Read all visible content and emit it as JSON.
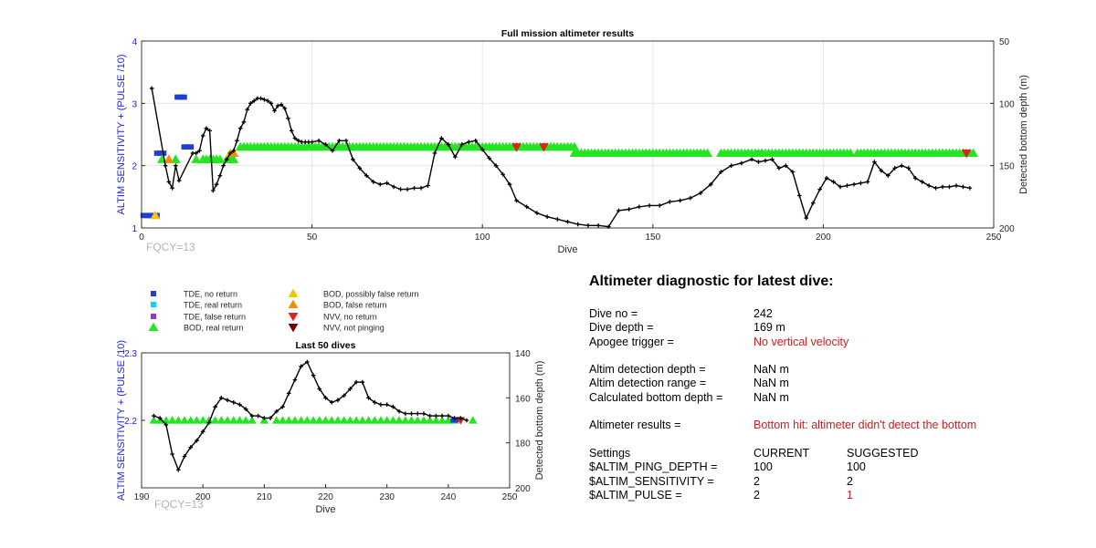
{
  "colors": {
    "tde_no_return": "#1f3fd4",
    "tde_real_return": "#00d8f5",
    "tde_false_return": "#8a3cc9",
    "bod_real_return": "#22e61f",
    "bod_possibly_false": "#f5c400",
    "bod_false_return": "#f28c00",
    "nvv_no_return": "#e02020",
    "nvv_not_pinging": "#7a0000",
    "depth_line": "#000000",
    "left_axis": "#1a1aff",
    "highlight": "#d7191c"
  },
  "legend": {
    "tde_no_return": "TDE, no return",
    "tde_real_return": "TDE, real return",
    "tde_false_return": "TDE, false return",
    "bod_real_return": "BOD, real return",
    "bod_possibly_false": "BOD, possibly false return",
    "bod_false_return": "BOD, false return",
    "nvv_no_return": "NVV, no return",
    "nvv_not_pinging": "NVV, not pinging"
  },
  "chart_data": [
    {
      "type": "scatter",
      "title": "Full mission altimeter results",
      "xlabel": "Dive",
      "ylabel_left": "ALTIM SENSITIVITY + (PULSE /10)",
      "ylabel_right": "Detected bottom depth (m)",
      "annotation": "FQCY=13",
      "xlim": [
        0,
        250
      ],
      "ylim_left": [
        1,
        4
      ],
      "ylim_right": [
        50,
        200
      ],
      "right_axis_reversed": true,
      "xticks": [
        0,
        50,
        100,
        150,
        200,
        250
      ],
      "yticks_left": [
        1,
        2,
        3,
        4
      ],
      "yticks_right": [
        50,
        100,
        150,
        200
      ],
      "grid": true,
      "series": [
        {
          "name": "TDE, no return",
          "marker": "square",
          "points": [
            [
              1,
              1.2
            ],
            [
              2,
              1.2
            ],
            [
              3,
              1.2
            ],
            [
              4,
              1.2
            ],
            [
              5,
              2.2
            ],
            [
              6,
              2.2
            ],
            [
              11,
              3.1
            ],
            [
              12,
              3.1
            ],
            [
              13,
              2.3
            ],
            [
              14,
              2.3
            ],
            [
              181,
              2.2
            ]
          ]
        },
        {
          "name": "BOD, real return",
          "marker": "triangle-up",
          "ranges": [
            [
              6,
              6,
              2.1
            ],
            [
              10,
              10,
              2.1
            ],
            [
              16,
              16,
              2.1
            ],
            [
              18,
              23,
              2.1
            ],
            [
              25,
              27,
              2.1
            ],
            [
              29,
              127,
              2.3
            ],
            [
              127,
              166,
              2.2
            ],
            [
              170,
              182,
              2.2
            ],
            [
              182,
              208,
              2.2
            ],
            [
              210,
              213,
              2.2
            ],
            [
              213,
              243,
              2.2
            ],
            [
              244,
              244,
              2.2
            ]
          ]
        },
        {
          "name": "BOD, possibly false return",
          "marker": "triangle-up",
          "points": [
            [
              4,
              1.2
            ],
            [
              8,
              2.1
            ],
            [
              26,
              2.2
            ],
            [
              27,
              2.2
            ]
          ]
        },
        {
          "name": "BOD, false return",
          "marker": "triangle-up",
          "points": [
            [
              8,
              2.1
            ],
            [
              27,
              2.2
            ]
          ]
        },
        {
          "name": "NVV, no return",
          "marker": "triangle-down",
          "points": [
            [
              110,
              2.3
            ],
            [
              118,
              2.3
            ],
            [
              242,
              2.2
            ]
          ]
        },
        {
          "name": "Detected bottom depth",
          "marker": "plus-line",
          "axis": "right",
          "x": [
            3,
            7,
            8,
            9,
            10,
            11,
            15,
            16,
            17,
            18,
            19,
            20,
            21,
            22,
            23,
            24,
            25,
            26,
            27,
            28,
            29,
            30,
            31,
            32,
            33,
            34,
            35,
            36,
            37,
            38,
            39,
            40,
            41,
            42,
            43,
            44,
            45,
            46,
            47,
            48,
            49,
            50,
            52,
            54,
            56,
            58,
            60,
            62,
            64,
            66,
            68,
            70,
            72,
            74,
            76,
            78,
            80,
            82,
            84,
            86,
            88,
            90,
            92,
            94,
            96,
            98,
            100,
            102,
            104,
            106,
            108,
            110,
            113,
            116,
            119,
            122,
            125,
            128,
            131,
            134,
            137,
            140,
            143,
            146,
            149,
            152,
            155,
            158,
            161,
            164,
            167,
            170,
            173,
            176,
            179,
            181,
            183,
            185,
            187,
            189,
            191,
            193,
            195,
            197,
            199,
            201,
            203,
            205,
            207,
            209,
            211,
            213,
            215,
            217,
            219,
            221,
            223,
            225,
            227,
            229,
            231,
            233,
            235,
            237,
            239,
            241,
            243
          ],
          "y": [
            88,
            150,
            163,
            168,
            150,
            162,
            140,
            140,
            138,
            126,
            120,
            122,
            170,
            165,
            158,
            150,
            145,
            140,
            138,
            130,
            120,
            115,
            105,
            100,
            98,
            96,
            96,
            97,
            98,
            100,
            106,
            102,
            101,
            104,
            112,
            122,
            128,
            130,
            131,
            131,
            131,
            131,
            130,
            133,
            138,
            130,
            130,
            145,
            152,
            158,
            163,
            165,
            164,
            167,
            169,
            169,
            168,
            168,
            166,
            140,
            128,
            133,
            143,
            133,
            131,
            130,
            137,
            144,
            150,
            157,
            165,
            178,
            183,
            188,
            191,
            193,
            195,
            197,
            198,
            198,
            199,
            186,
            185,
            183,
            182,
            182,
            179,
            178,
            176,
            172,
            165,
            155,
            150,
            148,
            145,
            147,
            146,
            145,
            152,
            150,
            155,
            174,
            192,
            180,
            169,
            160,
            163,
            167,
            166,
            165,
            164,
            163,
            147,
            154,
            158,
            152,
            150,
            152,
            160,
            163,
            166,
            168,
            167,
            167,
            166,
            167,
            168
          ]
        }
      ]
    },
    {
      "type": "scatter",
      "title": "Last 50 dives",
      "xlabel": "Dive",
      "ylabel_left": "ALTIM SENSITIVITY + (PULSE /10)",
      "ylabel_right": "Detected bottom depth (m)",
      "annotation": "FQCY=13",
      "xlim": [
        190,
        250
      ],
      "ylim_left": [
        2.1,
        2.3
      ],
      "ylim_right": [
        140,
        200
      ],
      "right_axis_reversed": true,
      "xticks": [
        190,
        200,
        210,
        220,
        230,
        240,
        250
      ],
      "yticks_left": [
        2.2,
        2.3
      ],
      "yticks_right": [
        140,
        160,
        180,
        200
      ],
      "grid": false,
      "series": [
        {
          "name": "BOD, real return",
          "marker": "triangle-up",
          "ranges": [
            [
              192,
              208,
              2.2
            ],
            [
              210,
              210,
              2.2
            ],
            [
              212,
              241,
              2.2
            ],
            [
              244,
              244,
              2.2
            ]
          ]
        },
        {
          "name": "TDE, no return",
          "marker": "square",
          "points": [
            [
              241,
              2.2
            ]
          ]
        },
        {
          "name": "NVV, no return",
          "marker": "triangle-down",
          "points": [
            [
              242,
              2.2
            ]
          ]
        },
        {
          "name": "Detected bottom depth",
          "marker": "plus-line",
          "axis": "right",
          "x": [
            192,
            193,
            194,
            195,
            196,
            197,
            198,
            199,
            200,
            201,
            202,
            203,
            204,
            205,
            206,
            207,
            208,
            209,
            210,
            211,
            212,
            213,
            214,
            215,
            216,
            217,
            218,
            219,
            220,
            221,
            222,
            223,
            224,
            225,
            226,
            227,
            228,
            229,
            230,
            231,
            232,
            233,
            234,
            235,
            236,
            237,
            238,
            239,
            240,
            241,
            242,
            243
          ],
          "y": [
            168,
            169,
            172,
            185,
            192,
            186,
            182,
            179,
            175,
            171,
            164,
            160,
            161,
            162,
            163,
            165,
            168,
            168,
            169,
            169,
            166,
            164,
            158,
            152,
            146,
            144,
            150,
            156,
            160,
            162,
            161,
            159,
            156,
            153,
            153,
            160,
            162,
            163,
            163,
            164,
            166,
            167,
            167,
            167,
            167,
            168,
            168,
            168,
            168,
            169,
            169,
            170
          ]
        }
      ]
    }
  ],
  "diagnostic": {
    "title": "Altimeter diagnostic for latest dive:",
    "rows": [
      {
        "label": "Dive no =",
        "value": "242"
      },
      {
        "label": "Dive depth =",
        "value": "169 m"
      },
      {
        "label": "Apogee trigger =",
        "value": "No vertical velocity"
      },
      {
        "label": "Altim detection depth =",
        "value": "NaN m"
      },
      {
        "label": "Altim detection range =",
        "value": "NaN m"
      },
      {
        "label": "Calculated bottom depth =",
        "value": "NaN m"
      },
      {
        "label": "Altimeter results =",
        "value": "Bottom hit: altimeter didn't detect the bottom"
      }
    ],
    "settings": {
      "header": [
        "Settings",
        "CURRENT",
        "SUGGESTED"
      ],
      "rows": [
        {
          "name": "$ALTIM_PING_DEPTH =",
          "current": "100",
          "suggested": "100"
        },
        {
          "name": "$ALTIM_SENSITIVITY =",
          "current": "2",
          "suggested": "2"
        },
        {
          "name": "$ALTIM_PULSE =",
          "current": "2",
          "suggested": "1"
        }
      ]
    }
  }
}
